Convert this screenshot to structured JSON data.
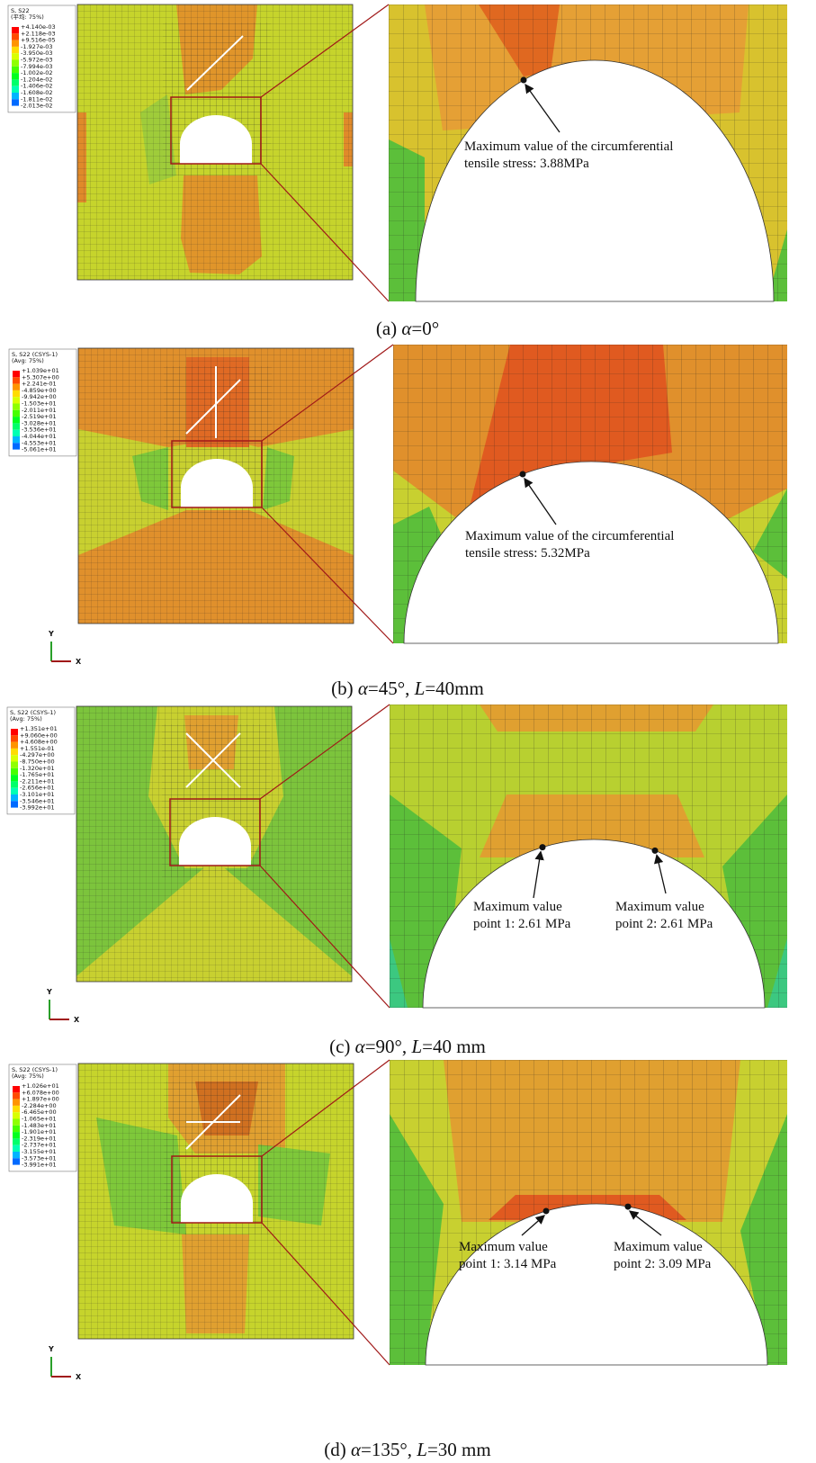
{
  "legend_colors": [
    "#ff0000",
    "#ff4a00",
    "#ff9400",
    "#ffdc00",
    "#d9ff00",
    "#8fff00",
    "#46ff00",
    "#00ff20",
    "#00ff6a",
    "#00ffb4",
    "#00b4ff",
    "#006aff",
    "#0020ff"
  ],
  "panels": [
    {
      "legend": {
        "title": [
          "S, S22",
          "(平均: 75%)"
        ],
        "values": [
          "+4.140e-03",
          "+2.118e-03",
          "+9.516e-05",
          "-1.927e-03",
          "-3.950e-03",
          "-5.972e-03",
          "-7.994e-03",
          "-1.002e-02",
          "-1.204e-02",
          "-1.406e-02",
          "-1.608e-02",
          "-1.811e-02",
          "-2.013e-02"
        ]
      },
      "annotations": [
        {
          "lines": [
            "Maximum value of the circumferential",
            "tensile stress: 3.88MPa"
          ]
        }
      ],
      "caption": [
        {
          "text": "(a) "
        },
        {
          "text": "α",
          "italic": true
        },
        {
          "text": "=0°"
        }
      ]
    },
    {
      "legend": {
        "title": [
          "S, S22 (CSYS-1)",
          "(Avg: 75%)"
        ],
        "values": [
          "+1.039e+01",
          "+5.307e+00",
          "+2.241e-01",
          "-4.859e+00",
          "-9.942e+00",
          "-1.503e+01",
          "-2.011e+01",
          "-2.519e+01",
          "-3.028e+01",
          "-3.536e+01",
          "-4.044e+01",
          "-4.553e+01",
          "-5.061e+01"
        ]
      },
      "annotations": [
        {
          "lines": [
            "Maximum value of the circumferential",
            "tensile stress: 5.32MPa"
          ]
        }
      ],
      "axis_labels": [
        "Y",
        "X"
      ],
      "caption": [
        {
          "text": "(b) "
        },
        {
          "text": "α",
          "italic": true
        },
        {
          "text": "=45°, "
        },
        {
          "text": "L",
          "italic": true
        },
        {
          "text": "=40mm"
        }
      ]
    },
    {
      "legend": {
        "title": [
          "S, S22 (CSYS-1)",
          "(Avg: 75%)"
        ],
        "values": [
          "+1.351e+01",
          "+9.060e+00",
          "+4.608e+00",
          "+1.551e-01",
          "-4.297e+00",
          "-8.750e+00",
          "-1.320e+01",
          "-1.765e+01",
          "-2.211e+01",
          "-2.656e+01",
          "-3.101e+01",
          "-3.546e+01",
          "-3.992e+01"
        ]
      },
      "annotations": [
        {
          "lines": [
            "Maximum value",
            "point 1: 2.61 MPa"
          ]
        },
        {
          "lines": [
            "Maximum value",
            "point 2: 2.61 MPa"
          ]
        }
      ],
      "axis_labels": [
        "Y",
        "X"
      ],
      "caption": [
        {
          "text": "(c) "
        },
        {
          "text": "α",
          "italic": true
        },
        {
          "text": "=90°, "
        },
        {
          "text": "L",
          "italic": true
        },
        {
          "text": "=40 mm"
        }
      ]
    },
    {
      "legend": {
        "title": [
          "S, S22 (CSYS-1)",
          "(Avg: 75%)"
        ],
        "values": [
          "+1.026e+01",
          "+6.078e+00",
          "+1.897e+00",
          "-2.284e+00",
          "-6.465e+00",
          "-1.065e+01",
          "-1.483e+01",
          "-1.901e+01",
          "-2.319e+01",
          "-2.737e+01",
          "-3.155e+01",
          "-3.573e+01",
          "-3.991e+01"
        ]
      },
      "annotations": [
        {
          "lines": [
            "Maximum value",
            "point 1: 3.14 MPa"
          ]
        },
        {
          "lines": [
            "Maximum value",
            "point 2: 3.09 MPa"
          ]
        }
      ],
      "axis_labels": [
        "Y",
        "X"
      ],
      "caption": [
        {
          "text": "(d) "
        },
        {
          "text": "α",
          "italic": true
        },
        {
          "text": "=135°, "
        },
        {
          "text": "L",
          "italic": true
        },
        {
          "text": "=30 mm"
        }
      ]
    }
  ]
}
